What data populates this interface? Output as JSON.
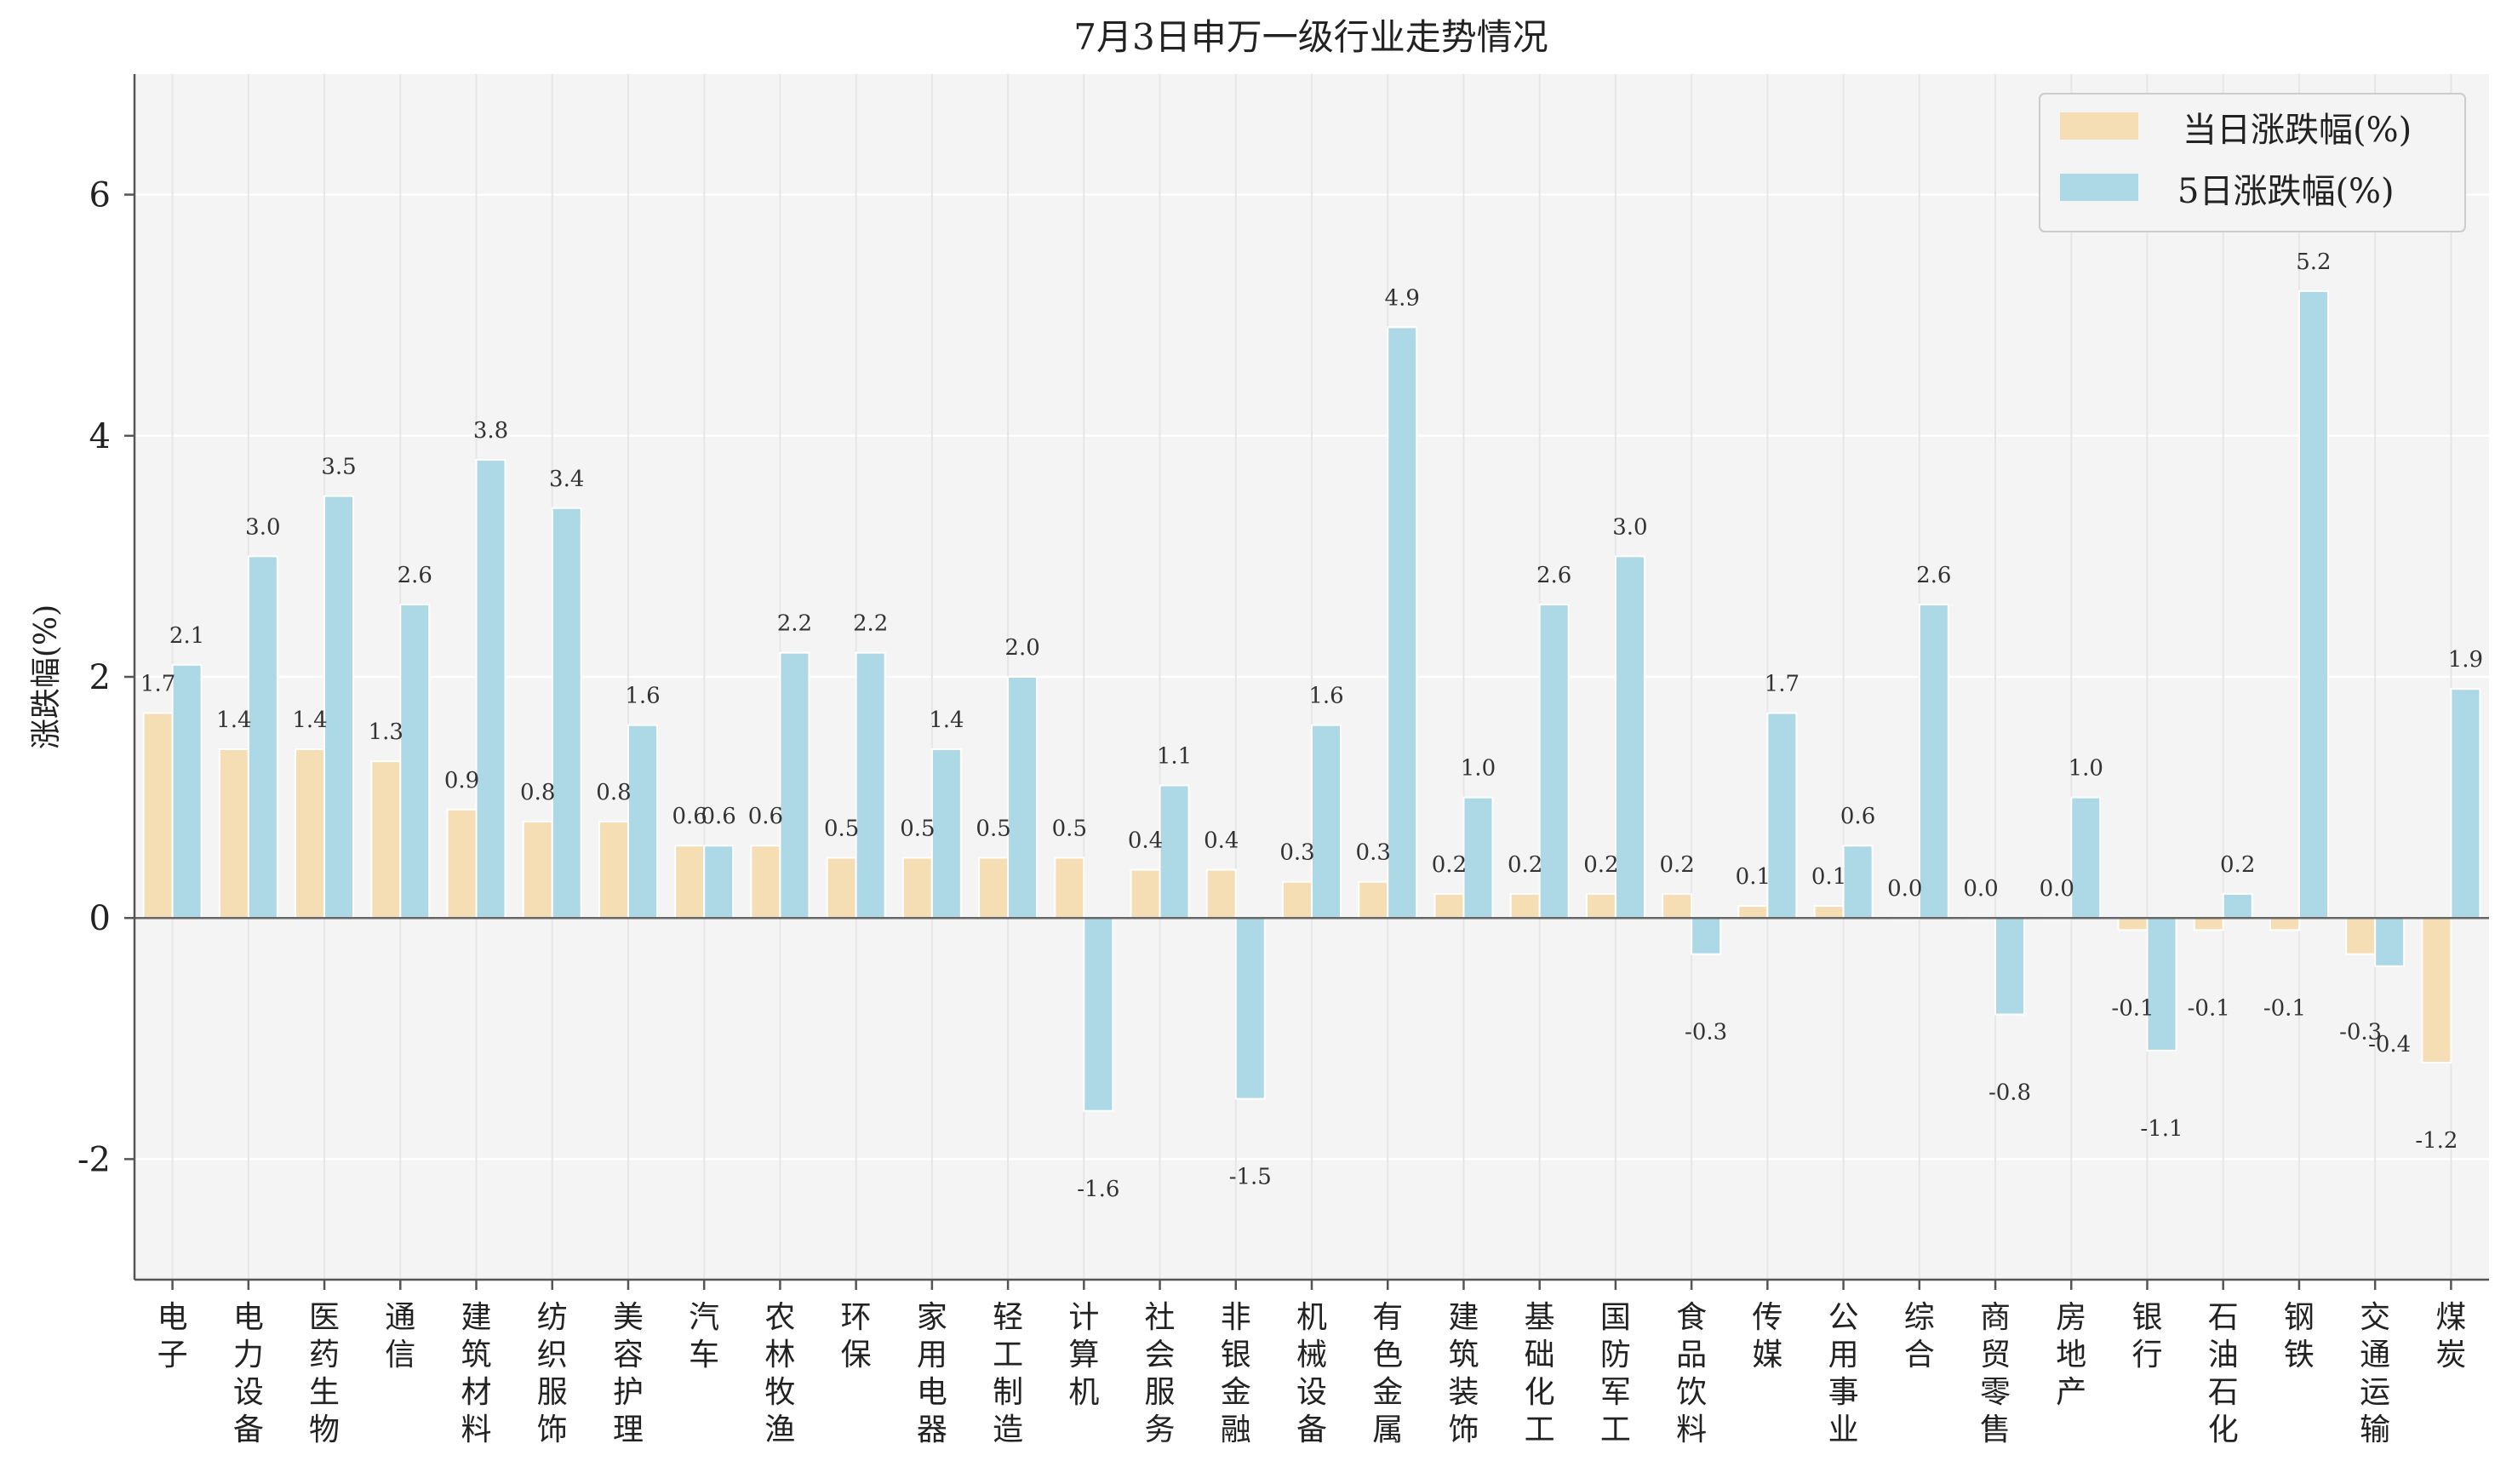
{
  "chart_data": {
    "type": "bar",
    "title": "7月3日申万一级行业走势情况",
    "ylabel": "涨跌幅(%)",
    "ylim": [
      -3,
      7
    ],
    "yticks": [
      -2,
      0,
      2,
      4,
      6
    ],
    "grid": true,
    "legend_position": "top-right",
    "categories": [
      "电子",
      "电力设备",
      "医药生物",
      "通信",
      "建筑材料",
      "纺织服饰",
      "美容护理",
      "汽车",
      "农林牧渔",
      "环保",
      "家用电器",
      "轻工制造",
      "计算机",
      "社会服务",
      "非银金融",
      "机械设备",
      "有色金属",
      "建筑装饰",
      "基础化工",
      "国防军工",
      "食品饮料",
      "传媒",
      "公用事业",
      "综合",
      "商贸零售",
      "房地产",
      "银行",
      "石油石化",
      "钢铁",
      "交通运输",
      "煤炭"
    ],
    "series": [
      {
        "name": "当日涨跌幅(%)",
        "color": "#f5deb3",
        "values": [
          1.7,
          1.4,
          1.4,
          1.3,
          0.9,
          0.8,
          0.8,
          0.6,
          0.6,
          0.5,
          0.5,
          0.5,
          0.5,
          0.4,
          0.4,
          0.3,
          0.3,
          0.2,
          0.2,
          0.2,
          0.2,
          0.1,
          0.1,
          0.0,
          0.0,
          0.0,
          -0.1,
          -0.1,
          -0.1,
          -0.3,
          -1.2
        ],
        "labels": [
          "1.7",
          "1.4",
          "1.4",
          "1.3",
          "0.9",
          "0.8",
          "0.8",
          "0.6",
          "0.6",
          "0.5",
          "0.5",
          "0.5",
          "0.5",
          "0.4",
          "0.4",
          "0.3",
          "0.3",
          "0.2",
          "0.2",
          "0.2",
          "0.2",
          "0.1",
          "0.1",
          "0.0",
          "0.0",
          "0.0",
          "-0.1",
          "-0.1",
          "-0.1",
          "-0.3",
          "-1.2"
        ]
      },
      {
        "name": "5日涨跌幅(%)",
        "color": "#add8e6",
        "values": [
          2.1,
          3.0,
          3.5,
          2.6,
          3.8,
          3.4,
          1.6,
          0.6,
          2.2,
          2.2,
          1.4,
          2.0,
          -1.6,
          1.1,
          -1.5,
          1.6,
          4.9,
          1.0,
          2.6,
          3.0,
          -0.3,
          1.7,
          0.6,
          2.6,
          -0.8,
          1.0,
          -1.1,
          0.2,
          5.2,
          -0.4,
          1.9
        ],
        "labels": [
          "2.1",
          "3.0",
          "3.5",
          "2.6",
          "3.8",
          "3.4",
          "1.6",
          "0.6",
          "2.2",
          "2.2",
          "1.4",
          "2.0",
          "-1.6",
          "1.1",
          "-1.5",
          "1.6",
          "4.9",
          "1.0",
          "2.6",
          "3.0",
          "-0.3",
          "1.7",
          "0.6",
          "2.6",
          "-0.8",
          "1.0",
          "-1.1",
          "0.2",
          "5.2",
          "-0.4",
          "1.9"
        ]
      }
    ]
  }
}
